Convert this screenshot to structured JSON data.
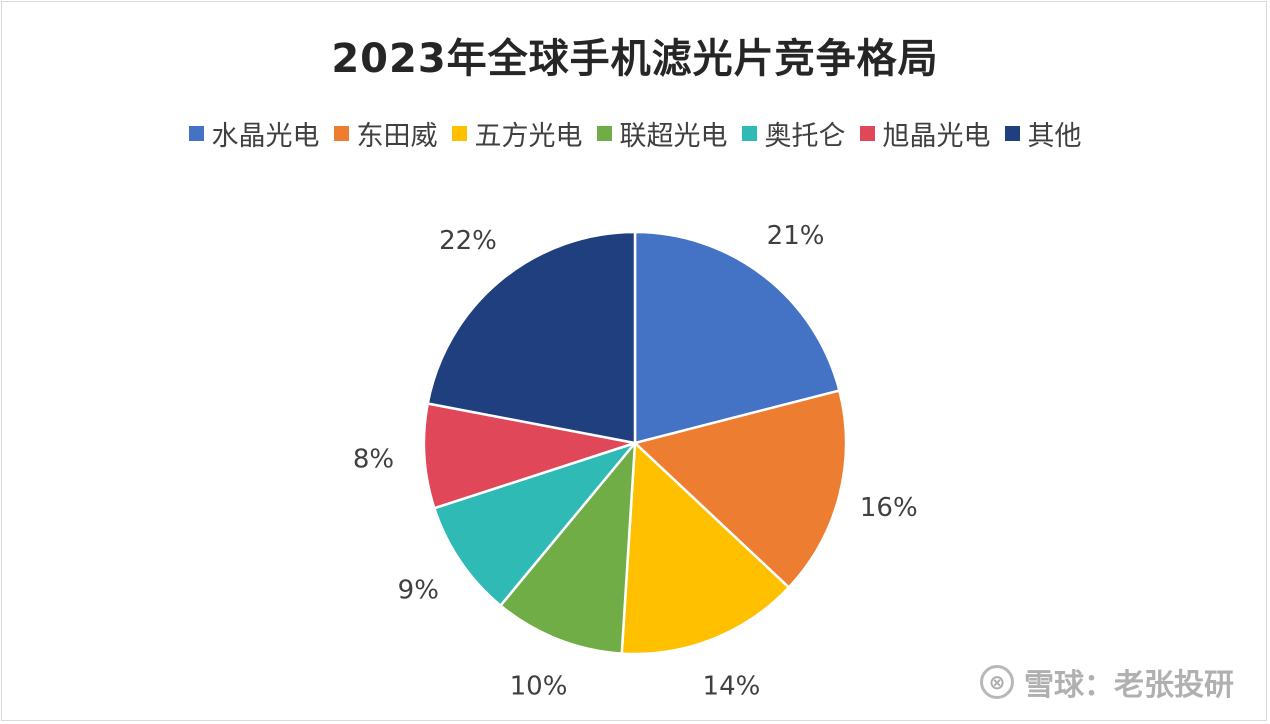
{
  "chart_data": {
    "type": "pie",
    "title": "2023年全球手机滤光片竞争格局",
    "categories": [
      "水晶光电",
      "东田威",
      "五方光电",
      "联超光电",
      "奥托仑",
      "旭晶光电",
      "其他"
    ],
    "values": [
      21,
      16,
      14,
      10,
      9,
      8,
      22
    ],
    "value_labels": [
      "21%",
      "16%",
      "14%",
      "10%",
      "9%",
      "8%",
      "22%"
    ],
    "colors": [
      "#4472C4",
      "#ED7D31",
      "#FFC000",
      "#70AD47",
      "#2FBAB5",
      "#E0485A",
      "#203F7E"
    ],
    "legend_position": "top",
    "start_angle": "12 o'clock",
    "direction": "clockwise"
  },
  "watermark": {
    "logo_glyph": "⊗",
    "text": "雪球：老张投研"
  }
}
